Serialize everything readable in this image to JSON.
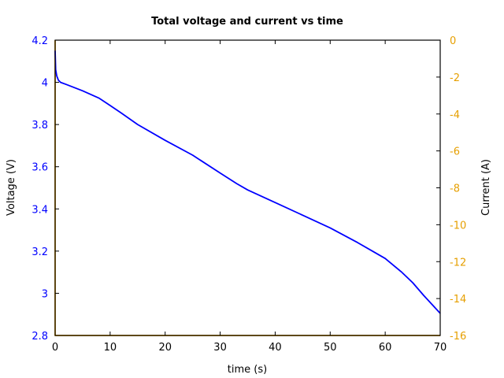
{
  "chart_data": {
    "type": "line",
    "title": "Total voltage and current vs time",
    "xlabel": "time (s)",
    "ylabel": "Voltage (V)",
    "y2label": "Current (A)",
    "xlim": [
      0,
      70
    ],
    "ylim": [
      2.8,
      4.2
    ],
    "y2lim": [
      -16,
      0
    ],
    "xticks": [
      0,
      10,
      20,
      30,
      40,
      50,
      60,
      70
    ],
    "yticks": [
      2.8,
      3,
      3.2,
      3.4,
      3.6,
      3.8,
      4,
      4.2
    ],
    "ytick_labels": [
      "2.8",
      "3",
      "3.2",
      "3.4",
      "3.6",
      "3.8",
      "4",
      "4.2"
    ],
    "y2ticks": [
      -16,
      -14,
      -12,
      -10,
      -8,
      -6,
      -4,
      -2,
      0
    ],
    "grid": false,
    "legend": null,
    "series": [
      {
        "name": "Voltage",
        "axis": "left",
        "color": "#0000ff",
        "x": [
          0,
          0.1,
          0.3,
          0.6,
          1,
          2,
          5,
          8,
          10,
          12,
          15,
          20,
          25,
          30,
          33,
          35,
          40,
          45,
          50,
          55,
          58,
          60,
          63,
          65,
          67,
          70
        ],
        "y": [
          4.15,
          4.06,
          4.03,
          4.01,
          4.0,
          3.99,
          3.96,
          3.925,
          3.89,
          3.855,
          3.8,
          3.725,
          3.655,
          3.57,
          3.52,
          3.49,
          3.43,
          3.37,
          3.31,
          3.24,
          3.195,
          3.165,
          3.1,
          3.05,
          2.99,
          2.905
        ]
      },
      {
        "name": "Current",
        "axis": "right",
        "color": "#e69f00",
        "x": [
          0,
          0,
          70
        ],
        "y": [
          0,
          -16,
          -16
        ]
      }
    ]
  },
  "colors": {
    "voltage": "#0000ff",
    "current": "#e69f00",
    "axis": "#000000"
  }
}
